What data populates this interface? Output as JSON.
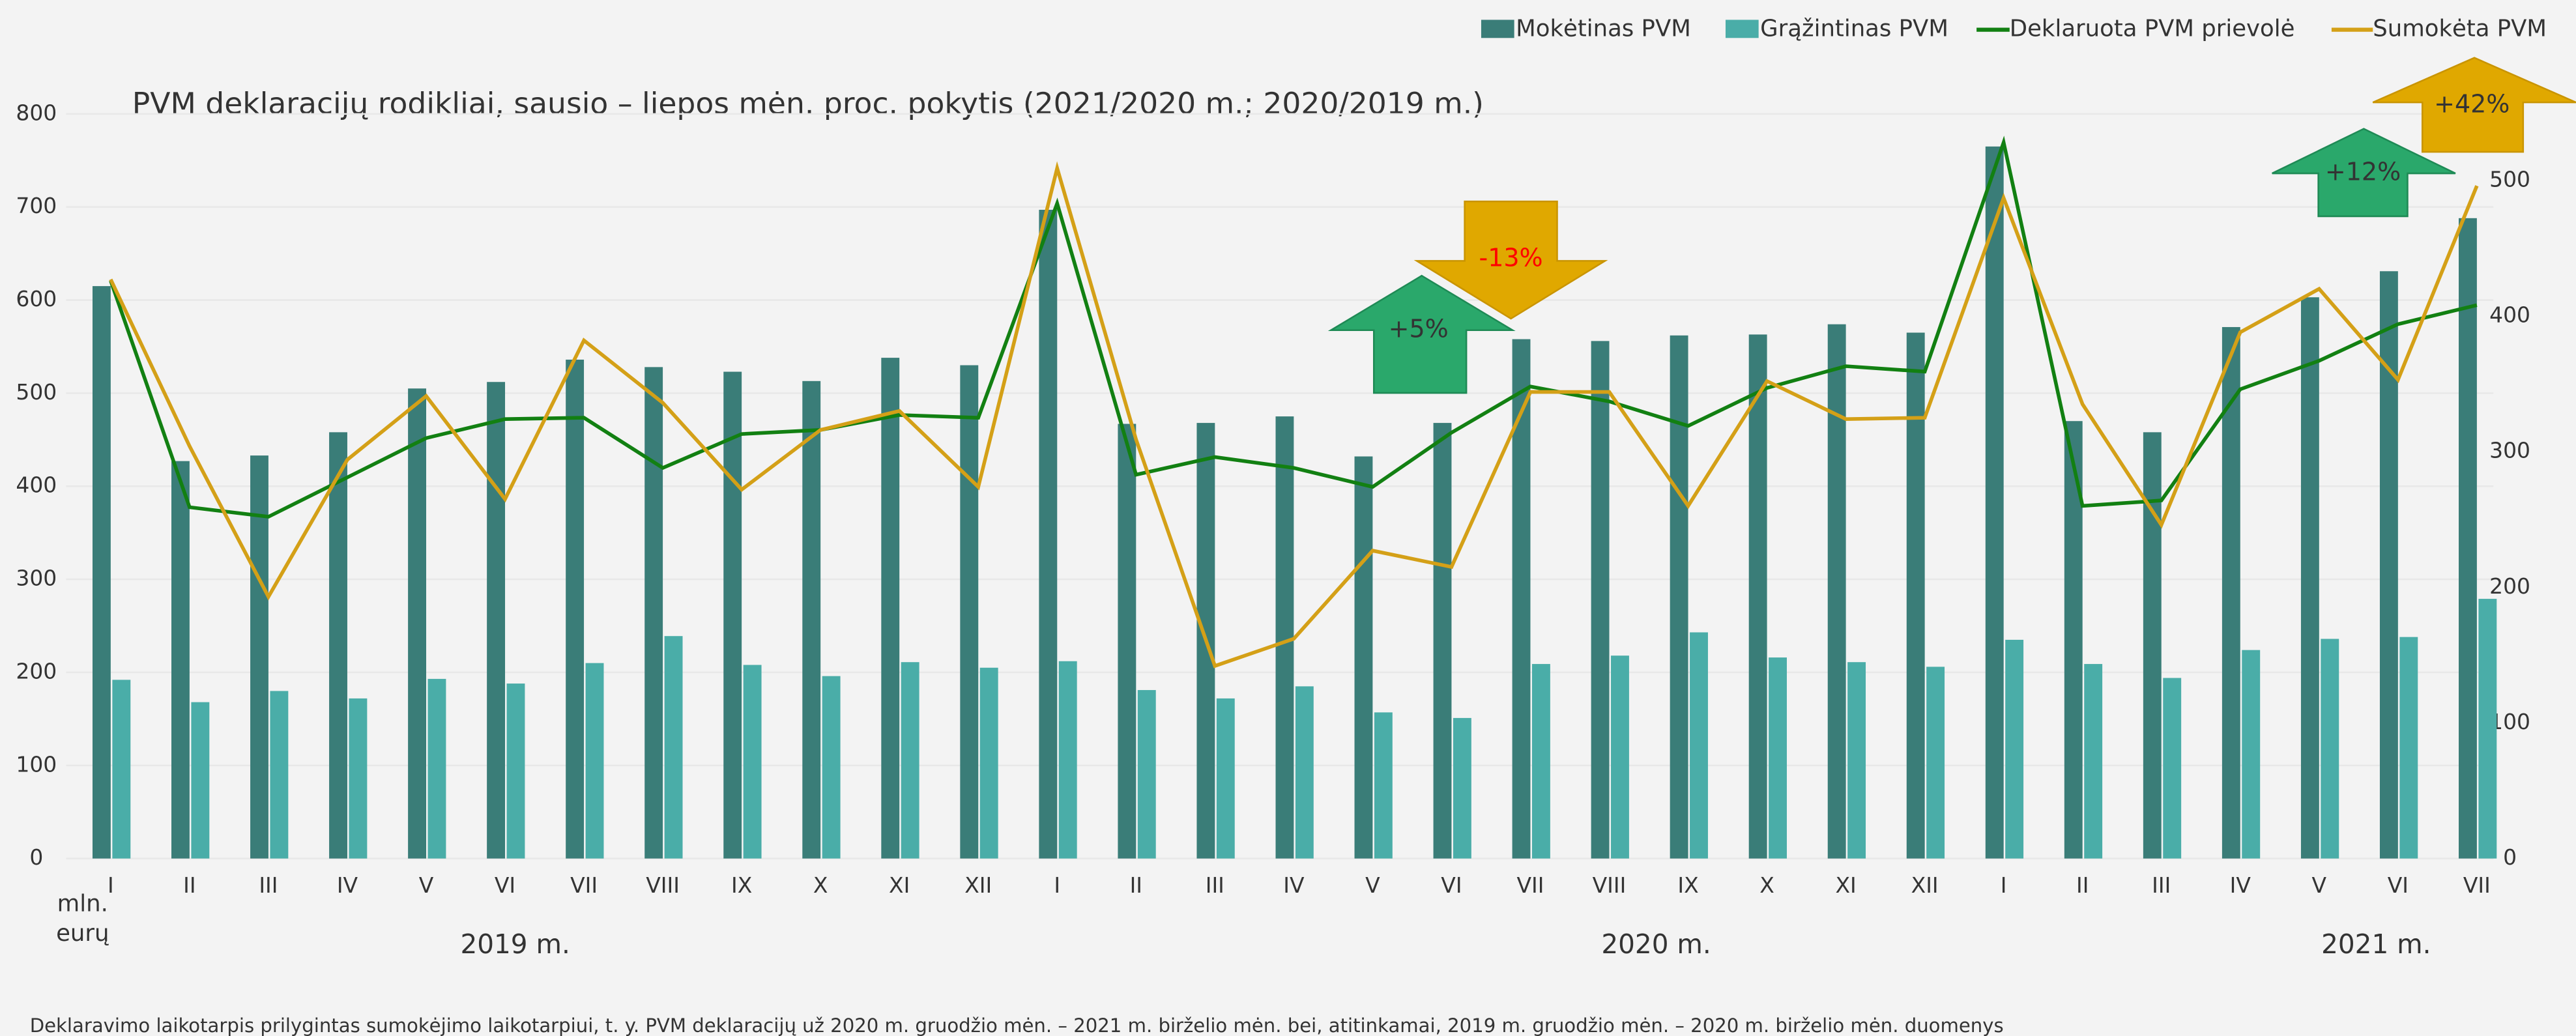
{
  "chart_data": {
    "type": "bar_line",
    "title": "PVM deklaracijų rodikliai, sausio – liepos mėn. proc. pokytis (2021/2020 m.; 2020/2019 m.)",
    "ylabel_lines": [
      "mln.",
      "eurų"
    ],
    "footnote": "Deklaravimo laikotarpis prilygintas sumokėjimo laikotarpiui, t. y. PVM deklaracijų už 2020 m. gruodžio mėn. – 2021 m. birželio mėn. bei, atitinkamai, 2019 m. gruodžio mėn. – 2020 m. birželio mėn. duomenys",
    "categories": [
      "I",
      "II",
      "III",
      "IV",
      "V",
      "VI",
      "VII",
      "VIII",
      "IX",
      "X",
      "XI",
      "XII",
      "I",
      "II",
      "III",
      "IV",
      "V",
      "VI",
      "VII",
      "VIII",
      "IX",
      "X",
      "XI",
      "XII",
      "I",
      "II",
      "III",
      "IV",
      "V",
      "VI",
      "VII"
    ],
    "year_labels": [
      "2019 m.",
      "2020 m.",
      "2021 m."
    ],
    "ylim": [
      0,
      800
    ],
    "yticks": [
      0,
      100,
      200,
      300,
      400,
      500,
      600,
      700,
      800
    ],
    "y2lim": [
      0,
      549
    ],
    "y2ticks": [
      0,
      100,
      200,
      300,
      400,
      500
    ],
    "series": [
      {
        "name": "Mokėtinas PVM",
        "kind": "bar",
        "color": "#3a7d78",
        "values": [
          615,
          427,
          433,
          458,
          505,
          512,
          536,
          528,
          523,
          513,
          538,
          530,
          697,
          467,
          468,
          475,
          432,
          468,
          558,
          556,
          562,
          563,
          574,
          565,
          765,
          470,
          458,
          571,
          603,
          631,
          688
        ]
      },
      {
        "name": "Grąžintinas PVM",
        "kind": "bar",
        "color": "#4aada8",
        "values": [
          192,
          168,
          180,
          172,
          193,
          188,
          210,
          239,
          208,
          196,
          211,
          205,
          212,
          181,
          172,
          185,
          157,
          151,
          209,
          218,
          243,
          216,
          211,
          206,
          235,
          209,
          194,
          224,
          236,
          238,
          279
        ]
      },
      {
        "name": "Deklaruota PVM prievolė",
        "kind": "line",
        "axis": "y2",
        "color": "#128012",
        "values": [
          426,
          259,
          252,
          281,
          310,
          324,
          325,
          288,
          313,
          316,
          327,
          325,
          483,
          283,
          296,
          288,
          274,
          314,
          348,
          337,
          319,
          347,
          363,
          359,
          528,
          260,
          264,
          346,
          367,
          394,
          408
        ]
      },
      {
        "name": "Sumokėta PVM",
        "kind": "line",
        "axis": "y2",
        "color": "#d4a017",
        "values": [
          427,
          304,
          193,
          294,
          341,
          265,
          382,
          336,
          272,
          316,
          330,
          274,
          509,
          309,
          142,
          162,
          227,
          215,
          344,
          344,
          260,
          352,
          324,
          325,
          487,
          335,
          246,
          388,
          420,
          353,
          496
        ]
      }
    ],
    "annotations": [
      {
        "text": "+5%",
        "direction": "up",
        "color": "#2aa86b"
      },
      {
        "text": "-13%",
        "direction": "down",
        "color": "#e0a800"
      },
      {
        "text": "+12%",
        "direction": "up",
        "color": "#2aa86b"
      },
      {
        "text": "+42%",
        "direction": "up",
        "color": "#e0a800"
      }
    ]
  }
}
